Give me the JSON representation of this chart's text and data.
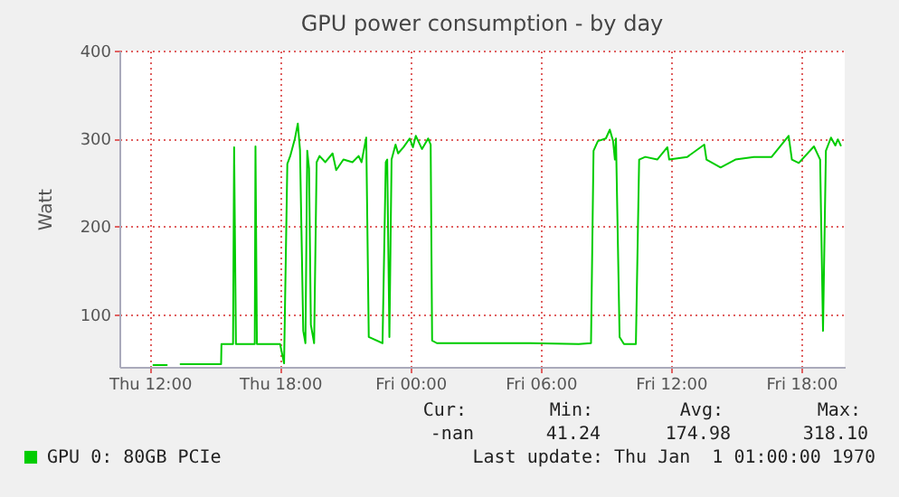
{
  "chart_data": {
    "type": "line",
    "title": "GPU power consumption - by day",
    "ylabel": "Watt",
    "x": [
      "1970-01-01T12:10",
      "1970-01-01T12:47",
      "1970-01-01T13:06",
      "1970-01-01T13:25",
      "1970-01-01T15:17",
      "1970-01-01T15:18",
      "1970-01-01T15:50",
      "1970-01-01T15:53",
      "1970-01-01T15:58",
      "1970-01-01T16:50",
      "1970-01-01T16:52",
      "1970-01-01T16:56",
      "1970-01-01T18:00",
      "1970-01-01T18:11",
      "1970-01-01T18:20",
      "1970-01-01T18:28",
      "1970-01-01T18:41",
      "1970-01-01T18:49",
      "1970-01-01T18:55",
      "1970-01-01T19:04",
      "1970-01-01T19:10",
      "1970-01-01T19:15",
      "1970-01-01T19:20",
      "1970-01-01T19:25",
      "1970-01-01T19:34",
      "1970-01-01T19:41",
      "1970-01-01T19:49",
      "1970-01-01T20:05",
      "1970-01-01T20:25",
      "1970-01-01T20:35",
      "1970-01-01T20:55",
      "1970-01-01T21:20",
      "1970-01-01T21:37",
      "1970-01-01T21:45",
      "1970-01-01T21:58",
      "1970-01-01T22:05",
      "1970-01-01T22:43",
      "1970-01-01T22:52",
      "1970-01-01T22:56",
      "1970-01-01T23:02",
      "1970-01-01T23:08",
      "1970-01-01T23:19",
      "1970-01-01T23:26",
      "1970-01-01T23:41",
      "1970-01-01T23:58",
      "1970-01-02T00:07",
      "1970-01-02T00:15",
      "1970-01-02T00:32",
      "1970-01-02T00:49",
      "1970-01-02T00:56",
      "1970-01-02T01:00",
      "1970-01-02T01:13",
      "1970-01-02T02:45",
      "1970-01-02T05:32",
      "1970-01-02T07:45",
      "1970-01-02T08:19",
      "1970-01-02T08:26",
      "1970-01-02T08:38",
      "1970-01-02T09:00",
      "1970-01-02T09:11",
      "1970-01-02T09:20",
      "1970-01-02T09:25",
      "1970-01-02T09:28",
      "1970-01-02T09:38",
      "1970-01-02T09:50",
      "1970-01-02T10:23",
      "1970-01-02T10:32",
      "1970-01-02T10:49",
      "1970-01-02T11:22",
      "1970-01-02T11:50",
      "1970-01-02T11:55",
      "1970-01-02T12:45",
      "1970-01-02T13:32",
      "1970-01-02T13:38",
      "1970-01-02T14:17",
      "1970-01-02T14:58",
      "1970-01-02T15:49",
      "1970-01-02T16:38",
      "1970-01-02T17:25",
      "1970-01-02T17:34",
      "1970-01-02T17:53",
      "1970-01-02T18:35",
      "1970-01-02T18:52",
      "1970-01-02T19:00",
      "1970-01-02T19:08",
      "1970-01-02T19:22",
      "1970-01-02T19:34",
      "1970-01-02T19:41",
      "1970-01-02T19:49"
    ],
    "series": [
      {
        "name": "GPU 0: 80GB PCIe",
        "color": "#00cc00",
        "values": [
          42,
          42,
          null,
          43,
          43,
          66,
          66,
          290,
          66,
          66,
          291,
          66,
          66,
          44,
          271,
          280,
          300,
          317,
          287,
          81,
          67,
          286,
          266,
          88,
          67,
          273,
          280,
          273,
          283,
          264,
          276,
          273,
          280,
          273,
          301,
          74,
          67,
          273,
          276,
          74,
          276,
          293,
          283,
          290,
          300,
          290,
          303,
          288,
          300,
          293,
          70,
          67,
          67,
          67,
          66,
          67,
          286,
          297,
          300,
          310,
          297,
          276,
          300,
          74,
          66,
          66,
          276,
          279,
          276,
          290,
          276,
          279,
          293,
          276,
          267,
          276,
          279,
          279,
          303,
          276,
          272,
          291,
          276,
          81,
          286,
          301,
          292,
          299,
          292
        ]
      }
    ],
    "xlim": [
      "1970-01-01T10:36",
      "1970-01-02T20:00"
    ],
    "xticks": [
      {
        "value": "1970-01-01T12:00",
        "label": "Thu 12:00"
      },
      {
        "value": "1970-01-01T18:00",
        "label": "Thu 18:00"
      },
      {
        "value": "1970-01-02T00:00",
        "label": "Fri 00:00"
      },
      {
        "value": "1970-01-02T06:00",
        "label": "Fri 06:00"
      },
      {
        "value": "1970-01-02T12:00",
        "label": "Fri 12:00"
      },
      {
        "value": "1970-01-02T18:00",
        "label": "Fri 18:00"
      }
    ],
    "ylim": [
      40,
      400
    ],
    "yticks": [
      100,
      200,
      300,
      400
    ],
    "grid": true,
    "legend": "bottom left",
    "line_style": "solid",
    "annotations": [
      "Cur:",
      "Min:",
      "Avg:",
      "Max:",
      "-nan",
      "41.24",
      "174.98",
      "318.10",
      "Last update: Thu Jan  1 01:00:00 1970"
    ]
  }
}
